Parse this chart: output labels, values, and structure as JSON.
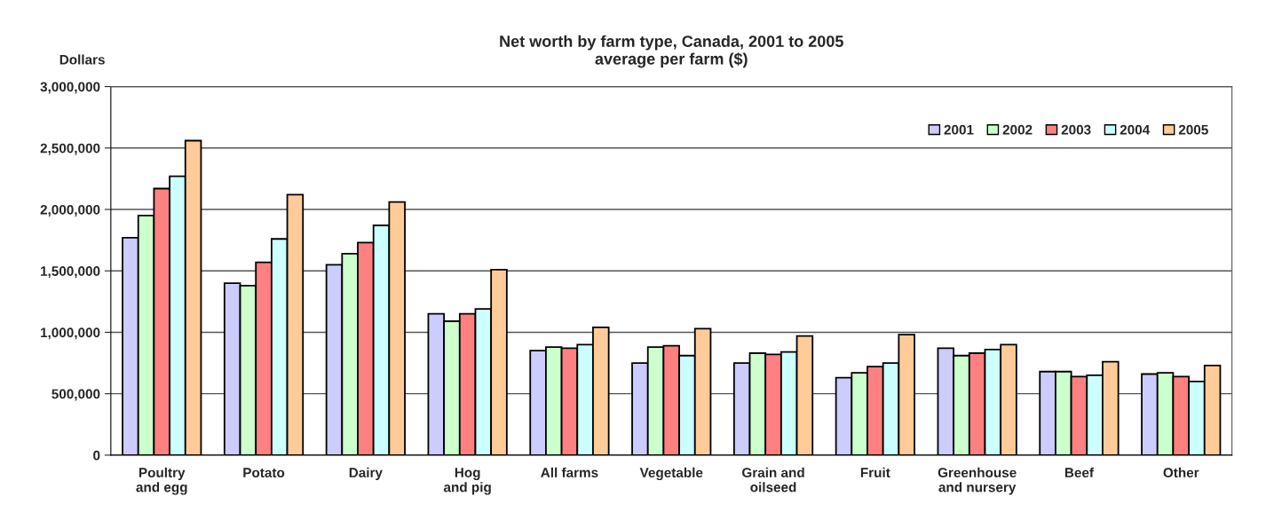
{
  "chart_data": {
    "type": "bar",
    "title": "Net worth by farm type, Canada, 2001 to 2005\naverage per farm ($)",
    "ylabel": "Dollars",
    "categories": [
      "Poultry\nand egg",
      "Potato",
      "Dairy",
      "Hog\nand pig",
      "All farms",
      "Vegetable",
      "Grain and\noilseed",
      "Fruit",
      "Greenhouse\nand nursery",
      "Beef",
      "Other"
    ],
    "series": [
      {
        "name": "2001",
        "color": "#ccccff",
        "values": [
          1770000,
          1400000,
          1550000,
          1150000,
          850000,
          750000,
          750000,
          630000,
          870000,
          680000,
          660000
        ]
      },
      {
        "name": "2002",
        "color": "#ccffcc",
        "values": [
          1950000,
          1380000,
          1640000,
          1090000,
          880000,
          880000,
          830000,
          670000,
          810000,
          680000,
          670000
        ]
      },
      {
        "name": "2003",
        "color": "#ff8080",
        "values": [
          2170000,
          1570000,
          1730000,
          1150000,
          870000,
          890000,
          820000,
          720000,
          830000,
          640000,
          640000
        ]
      },
      {
        "name": "2004",
        "color": "#ccffff",
        "values": [
          2270000,
          1760000,
          1870000,
          1190000,
          900000,
          810000,
          840000,
          750000,
          860000,
          650000,
          600000
        ]
      },
      {
        "name": "2005",
        "color": "#ffcc99",
        "values": [
          2560000,
          2120000,
          2060000,
          1510000,
          1040000,
          1030000,
          970000,
          980000,
          900000,
          760000,
          730000
        ]
      }
    ],
    "ylim": [
      0,
      3000000
    ],
    "yticks": [
      {
        "value": 0,
        "label": "0"
      },
      {
        "value": 500000,
        "label": "500,000"
      },
      {
        "value": 1000000,
        "label": "1,000,000"
      },
      {
        "value": 1500000,
        "label": "1,500,000"
      },
      {
        "value": 2000000,
        "label": "2,000,000"
      },
      {
        "value": 2500000,
        "label": "2,500,000"
      },
      {
        "value": 3000000,
        "label": "3,000,000"
      }
    ],
    "grid": "y",
    "legend": "top right"
  }
}
